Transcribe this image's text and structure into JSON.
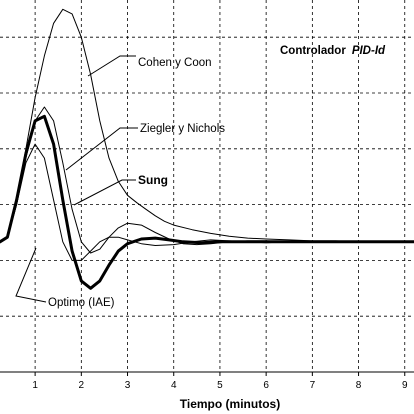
{
  "chart_data": {
    "type": "line",
    "title_prefix": "Controlador",
    "title_emph": "PID-Id",
    "xlabel": "Tiempo (minutos)",
    "ylabel": "",
    "xlim": [
      0.24,
      9.2
    ],
    "ylim": [
      -1.4,
      2.6
    ],
    "x_ticks": [
      "1",
      "2",
      "3",
      "4",
      "5",
      "6",
      "7",
      "8",
      "9"
    ],
    "grid": true,
    "series": [
      {
        "name": "Cohen y Coon",
        "color": "#000000",
        "x": [
          0.24,
          0.4,
          0.6,
          0.8,
          1.0,
          1.2,
          1.4,
          1.6,
          1.8,
          2.0,
          2.2,
          2.4,
          2.6,
          2.8,
          3.0,
          3.2,
          3.4,
          3.6,
          3.8,
          4.0,
          4.4,
          4.8,
          5.2,
          5.6,
          6.0,
          6.5,
          7.0,
          7.5,
          8.0,
          8.5,
          9.2
        ],
        "y": [
          0.0,
          0.05,
          0.45,
          1.0,
          1.55,
          2.0,
          2.35,
          2.5,
          2.45,
          2.2,
          1.8,
          1.3,
          0.9,
          0.65,
          0.5,
          0.42,
          0.35,
          0.28,
          0.22,
          0.18,
          0.13,
          0.09,
          0.06,
          0.04,
          0.03,
          0.02,
          0.01,
          0.01,
          0.0,
          0.0,
          0.0
        ]
      },
      {
        "name": "Ziegler y Nichols",
        "color": "#000000",
        "x": [
          0.24,
          0.4,
          0.6,
          0.8,
          1.0,
          1.2,
          1.4,
          1.6,
          1.8,
          2.0,
          2.2,
          2.4,
          2.6,
          2.8,
          3.0,
          3.3,
          3.6,
          3.9,
          4.2,
          4.5,
          4.8,
          5.2,
          5.6,
          6.0,
          6.5,
          7.0,
          8.0,
          9.2
        ],
        "y": [
          0.0,
          0.05,
          0.4,
          0.9,
          1.3,
          1.45,
          1.3,
          0.85,
          0.35,
          0.0,
          -0.12,
          -0.08,
          0.05,
          0.15,
          0.2,
          0.18,
          0.1,
          0.03,
          -0.02,
          -0.03,
          -0.02,
          0.0,
          0.01,
          0.01,
          0.0,
          0.0,
          0.0,
          0.0
        ]
      },
      {
        "name": "Sung",
        "color": "#000000",
        "x": [
          0.24,
          0.4,
          0.6,
          0.8,
          1.0,
          1.2,
          1.4,
          1.6,
          1.8,
          2.0,
          2.2,
          2.4,
          2.6,
          2.8,
          3.0,
          3.3,
          3.6,
          3.9,
          4.2,
          4.6,
          5.0,
          5.5,
          6.0,
          7.0,
          8.0,
          9.2
        ],
        "y": [
          0.0,
          0.05,
          0.45,
          0.95,
          1.3,
          1.35,
          1.05,
          0.45,
          -0.1,
          -0.42,
          -0.5,
          -0.42,
          -0.25,
          -0.1,
          -0.02,
          0.03,
          0.04,
          0.02,
          0.0,
          -0.01,
          0.0,
          0.0,
          0.0,
          0.0,
          0.0,
          0.0
        ]
      },
      {
        "name": "Optimo (IAE)",
        "color": "#000000",
        "x": [
          0.24,
          0.4,
          0.6,
          0.8,
          1.0,
          1.2,
          1.4,
          1.6,
          1.8,
          2.0,
          2.2,
          2.4,
          2.6,
          2.8,
          3.0,
          3.3,
          3.6,
          4.0,
          4.4,
          4.8,
          5.2,
          5.6,
          6.0,
          6.5,
          7.0,
          8.0,
          9.2
        ],
        "y": [
          0.0,
          0.05,
          0.4,
          0.85,
          1.05,
          0.9,
          0.45,
          0.0,
          -0.2,
          -0.2,
          -0.1,
          0.0,
          0.05,
          0.05,
          0.02,
          -0.02,
          -0.04,
          -0.03,
          0.0,
          0.02,
          0.01,
          0.0,
          -0.01,
          0.0,
          0.0,
          0.0,
          0.0
        ]
      }
    ]
  }
}
